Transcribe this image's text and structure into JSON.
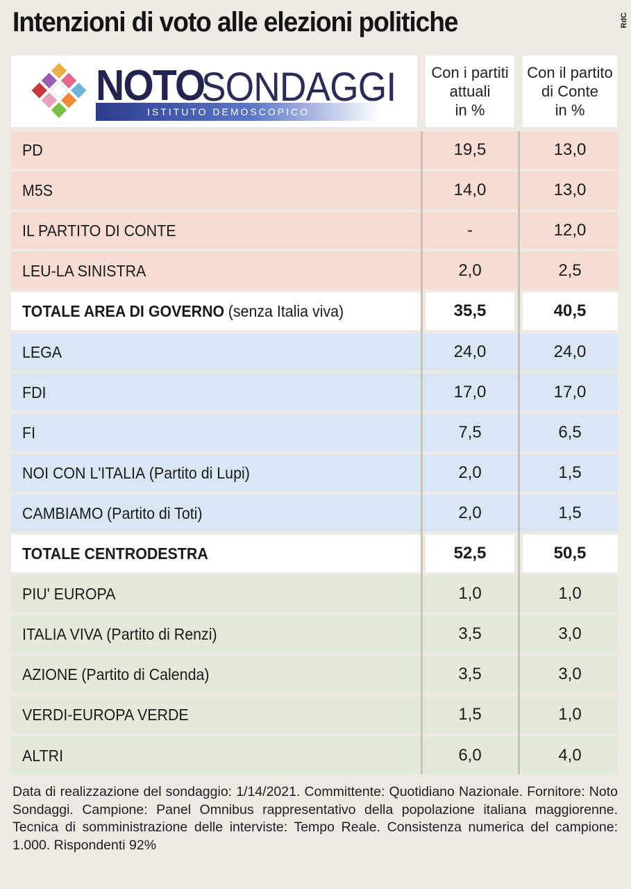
{
  "title": "Intenzioni di voto alle elezioni politiche",
  "credit": "RdC",
  "logo": {
    "name_bold": "NOTO",
    "name_light": "SONDAGGI",
    "subtitle": "ISTITUTO DEMOSCOPICO"
  },
  "columns": {
    "col1": [
      "Con i partiti",
      "attuali",
      "in %"
    ],
    "col2": [
      "Con il partito",
      "di Conte",
      "in %"
    ]
  },
  "colors": {
    "governo": "#f6dcd3",
    "centrodestra": "#d9e6f4",
    "altri": "#e3ead9",
    "total_row": "#ffffff"
  },
  "chart_data": {
    "type": "table",
    "title": "Intenzioni di voto alle elezioni politiche",
    "columns": [
      "Con i partiti attuali in %",
      "Con il partito di Conte in %"
    ],
    "rows": [
      {
        "group": "governo",
        "party": "PD",
        "note": "",
        "attuali": "19,5",
        "conte": "13,0",
        "total": false
      },
      {
        "group": "governo",
        "party": "M5S",
        "note": "",
        "attuali": "14,0",
        "conte": "13,0",
        "total": false
      },
      {
        "group": "governo",
        "party": "IL PARTITO DI CONTE",
        "note": "",
        "attuali": "-",
        "conte": "12,0",
        "total": false
      },
      {
        "group": "governo",
        "party": "LEU-LA SINISTRA",
        "note": "",
        "attuali": "2,0",
        "conte": "2,5",
        "total": false
      },
      {
        "group": "governo",
        "party": "TOTALE AREA DI GOVERNO",
        "note": "(senza Italia viva)",
        "attuali": "35,5",
        "conte": "40,5",
        "total": true
      },
      {
        "group": "centrodestra",
        "party": "LEGA",
        "note": "",
        "attuali": "24,0",
        "conte": "24,0",
        "total": false
      },
      {
        "group": "centrodestra",
        "party": "FDI",
        "note": "",
        "attuali": "17,0",
        "conte": "17,0",
        "total": false
      },
      {
        "group": "centrodestra",
        "party": "FI",
        "note": "",
        "attuali": "7,5",
        "conte": "6,5",
        "total": false
      },
      {
        "group": "centrodestra",
        "party": "NOI CON L'ITALIA",
        "note": "(Partito di Lupi)",
        "attuali": "2,0",
        "conte": "1,5",
        "total": false
      },
      {
        "group": "centrodestra",
        "party": "CAMBIAMO",
        "note": "(Partito di Toti)",
        "attuali": "2,0",
        "conte": "1,5",
        "total": false
      },
      {
        "group": "centrodestra",
        "party": "TOTALE CENTRODESTRA",
        "note": "",
        "attuali": "52,5",
        "conte": "50,5",
        "total": true
      },
      {
        "group": "altri",
        "party": "PIU' EUROPA",
        "note": "",
        "attuali": "1,0",
        "conte": "1,0",
        "total": false
      },
      {
        "group": "altri",
        "party": "ITALIA VIVA",
        "note": "(Partito di Renzi)",
        "attuali": "3,5",
        "conte": "3,0",
        "total": false
      },
      {
        "group": "altri",
        "party": "AZIONE",
        "note": "(Partito di Calenda)",
        "attuali": "3,5",
        "conte": "3,0",
        "total": false
      },
      {
        "group": "altri",
        "party": "VERDI-EUROPA VERDE",
        "note": "",
        "attuali": "1,5",
        "conte": "1,0",
        "total": false
      },
      {
        "group": "altri",
        "party": "ALTRI",
        "note": "",
        "attuali": "6,0",
        "conte": "4,0",
        "total": false
      }
    ]
  },
  "footer": "Data di realizzazione del sondaggio: 1/14/2021. Committente: Quotidiano Nazionale. Fornitore: Noto Sondaggi. Campione: Panel Omnibus rappresentativo della popolazione italiana maggiorenne. Tecnica di somministrazione delle interviste: Tempo Reale. Consistenza numerica del campione: 1.000. Rispondenti 92%"
}
